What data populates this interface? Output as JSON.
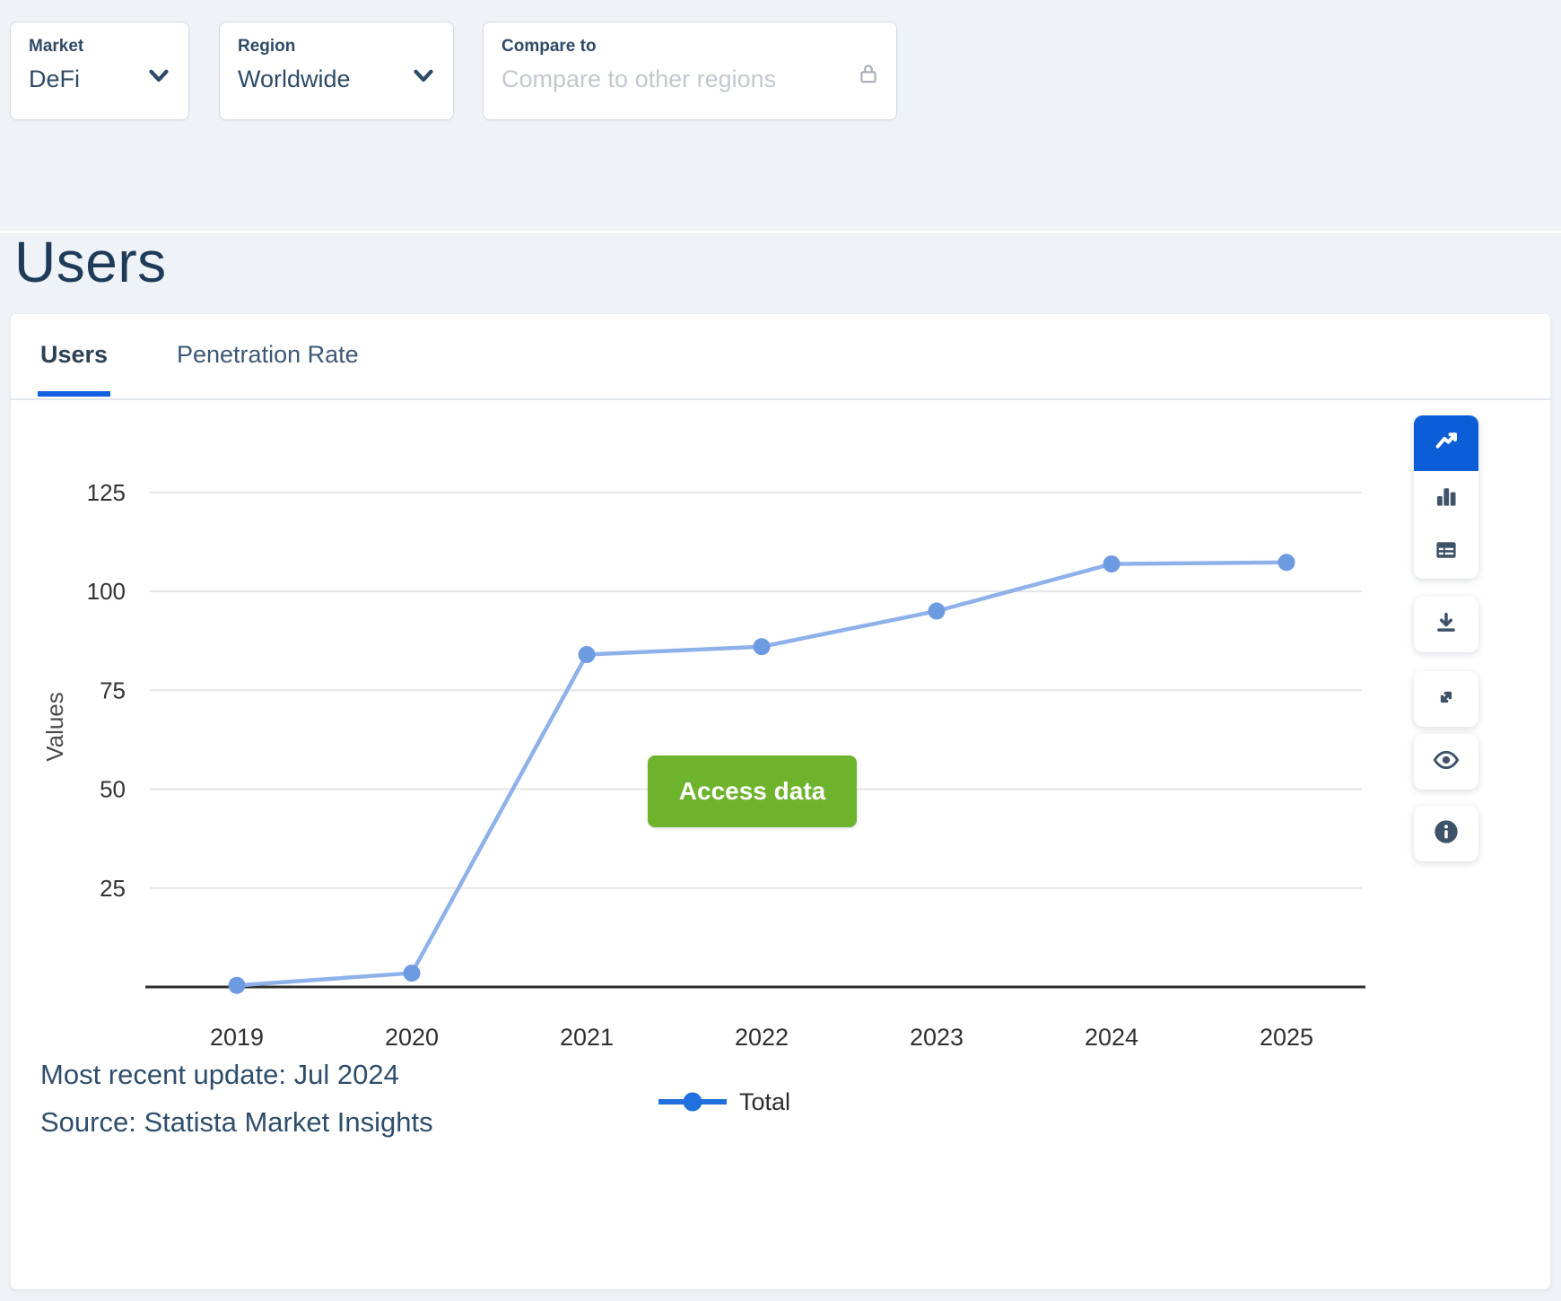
{
  "filters": {
    "market": {
      "label": "Market",
      "value": "DeFi"
    },
    "region": {
      "label": "Region",
      "value": "Worldwide"
    },
    "compare": {
      "label": "Compare to",
      "placeholder": "Compare to other regions"
    }
  },
  "page": {
    "title": "Users"
  },
  "tabs": [
    {
      "label": "Users",
      "active": true
    },
    {
      "label": "Penetration Rate",
      "active": false
    }
  ],
  "chart_data": {
    "type": "line",
    "x": [
      "2019",
      "2020",
      "2021",
      "2022",
      "2023",
      "2024",
      "2025"
    ],
    "series": [
      {
        "name": "Total",
        "values": [
          0.4,
          3.5,
          84,
          86,
          95,
          106.9,
          107.3
        ]
      }
    ],
    "title": "Users",
    "xlabel": "",
    "ylabel": "Values",
    "yticks": [
      25,
      50,
      75,
      100,
      125
    ],
    "ylim": [
      0,
      137
    ],
    "grid": true,
    "legend_position": "bottom",
    "line_color": "#8fb1ea",
    "dot_color": "#6d9be2",
    "legend_marker_color": "#1f6fdc",
    "grid_color": "#e4e6e8",
    "axis_color": "#2e2e2e",
    "tick_label_color": "#333333"
  },
  "overlay_button": {
    "label": "Access data",
    "color": "#6db32c"
  },
  "toolbar": {
    "icons": [
      "line-chart",
      "bar-chart",
      "table",
      "download",
      "expand",
      "eye",
      "info"
    ],
    "active_icon": "line-chart",
    "active_color": "#0b5ed7",
    "icon_color": "#3f5368"
  },
  "footer": {
    "updated": "Most recent update: Jul 2024",
    "source": "Source: Statista Market Insights"
  },
  "colors": {
    "page_background": "#eff3f7",
    "card_background": "#ffffff",
    "accent_blue": "#1060e0",
    "green_button": "#6db32c",
    "navy_text": "#2e4a67"
  }
}
